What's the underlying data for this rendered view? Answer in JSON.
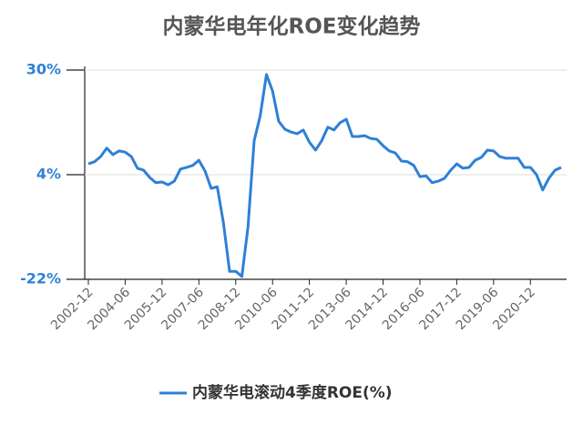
{
  "chart_data": {
    "type": "line",
    "title": "内蒙华电年化ROE变化趋势",
    "categories": [
      "2002-12",
      null,
      null,
      null,
      null,
      null,
      "2004-06",
      null,
      null,
      null,
      null,
      null,
      "2005-12",
      null,
      null,
      null,
      null,
      null,
      "2007-06",
      null,
      null,
      null,
      null,
      null,
      "2008-12",
      null,
      null,
      null,
      null,
      null,
      "2010-06",
      null,
      null,
      null,
      null,
      null,
      "2011-12",
      null,
      null,
      null,
      null,
      null,
      "2013-06",
      null,
      null,
      null,
      null,
      null,
      "2014-12",
      null,
      null,
      null,
      null,
      null,
      "2016-06",
      null,
      null,
      null,
      null,
      null,
      "2017-12",
      null,
      null,
      null,
      null,
      null,
      "2019-06",
      null,
      null,
      null,
      null,
      null,
      "2020-12",
      null,
      null,
      null,
      null,
      null
    ],
    "series": [
      {
        "name": "内蒙华电滚动4季度ROE(%)",
        "color": "#2f80d6",
        "values": [
          6.7,
          7.2,
          8.5,
          10.6,
          9,
          9.9,
          9.6,
          8.5,
          5.6,
          5.1,
          3.3,
          2,
          2.2,
          1.5,
          2.4,
          5.4,
          5.8,
          6.3,
          7.6,
          4.9,
          0.6,
          1,
          -8,
          -20,
          -20,
          -21.3,
          -9.1,
          12.4,
          18.7,
          28.9,
          24.8,
          17.3,
          15.3,
          14.6,
          14.2,
          15.1,
          12.1,
          10.1,
          12.4,
          15.8,
          15.1,
          16.9,
          17.8,
          13.5,
          13.5,
          13.7,
          13,
          12.8,
          11.2,
          9.9,
          9.4,
          7.4,
          7.2,
          6.3,
          3.5,
          3.7,
          2,
          2.4,
          3.1,
          5.1,
          6.7,
          5.6,
          5.8,
          7.6,
          8.3,
          10.1,
          9.9,
          8.5,
          8.1,
          8.1,
          8.1,
          5.8,
          5.8,
          4,
          0.2,
          3.1,
          5.1,
          5.8
        ]
      }
    ],
    "ylim": [
      -22,
      30
    ],
    "yticks": [
      {
        "value": -22,
        "label": "-22%"
      },
      {
        "value": 4,
        "label": "4%"
      },
      {
        "value": 30,
        "label": "30%"
      }
    ],
    "grid": true
  }
}
